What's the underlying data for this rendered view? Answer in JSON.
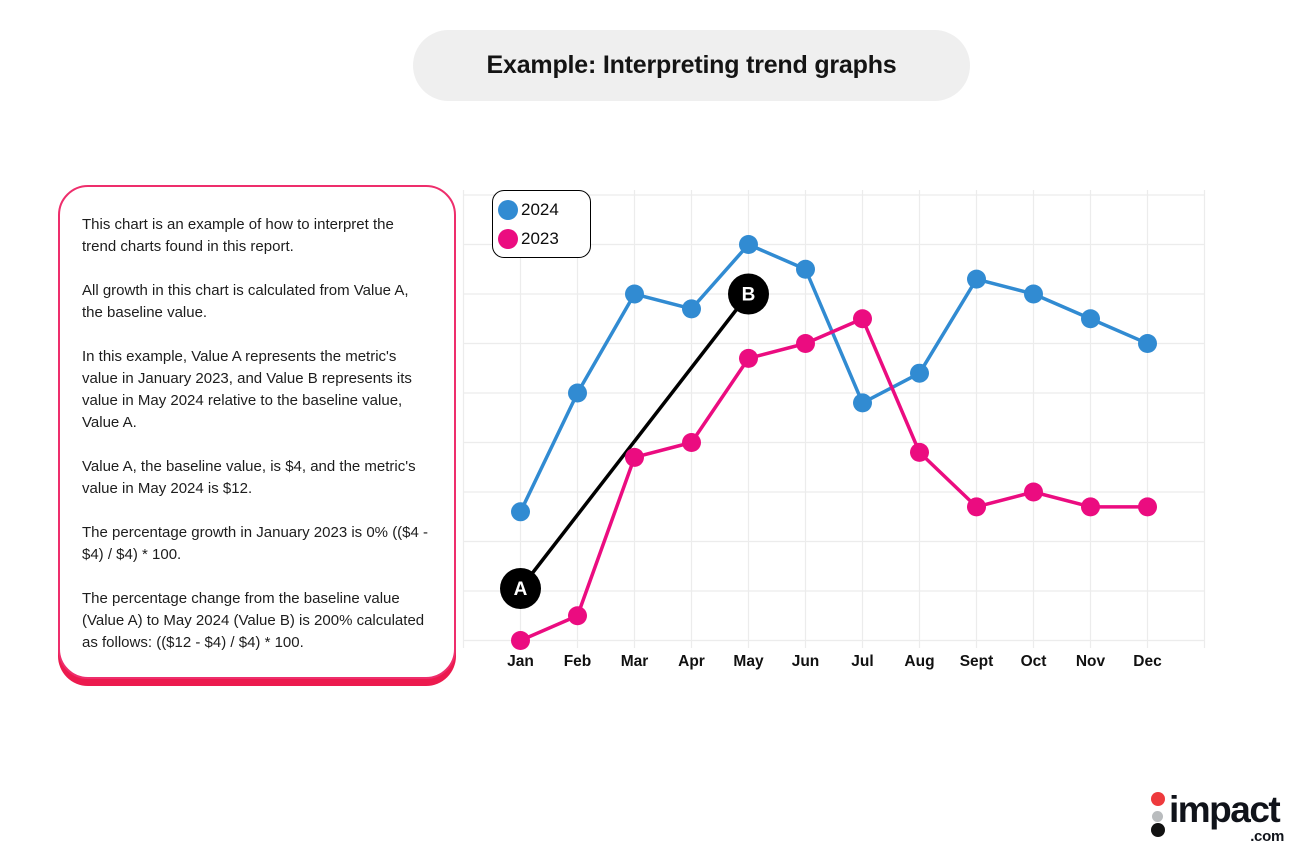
{
  "title": "Example: Interpreting trend graphs",
  "panel": {
    "paragraphs": [
      "This chart is an example of how to interpret the trend charts found in this report.",
      "All growth in this chart is calculated from Value A, the baseline value.",
      "In this example, Value A represents the metric's value in January 2023, and Value B represents its value in May 2024 relative to the baseline value, Value A.",
      "Value A, the baseline value, is $4, and the metric's value in May 2024 is $12.",
      "The percentage growth in January 2023 is 0% (($4 - $4) / $4) * 100.",
      "The percentage change from the baseline value (Value A) to May 2024 (Value B) is 200% calculated as follows: (($12 - $4) / $4) * 100."
    ]
  },
  "chart_data": {
    "type": "line",
    "categories": [
      "Jan",
      "Feb",
      "Mar",
      "Apr",
      "May",
      "Jun",
      "Jul",
      "Aug",
      "Sept",
      "Oct",
      "Nov",
      "Dec"
    ],
    "series": [
      {
        "name": "2024",
        "color": "#318bd2",
        "values": [
          6.6,
          9.0,
          11.0,
          10.7,
          12.0,
          11.5,
          8.8,
          9.4,
          11.3,
          11.0,
          10.5,
          10.0
        ]
      },
      {
        "name": "2023",
        "color": "#eb0c80",
        "values": [
          4.0,
          4.5,
          7.7,
          8.0,
          9.7,
          10.0,
          10.5,
          7.8,
          6.7,
          7.0,
          6.7,
          6.7
        ]
      }
    ],
    "unit": "$",
    "title": "",
    "xlabel": "",
    "ylabel": "",
    "ylim": [
      3.8,
      13.1
    ],
    "y_gridline_step": 1,
    "y_axis_labels_shown": false,
    "grid": true,
    "legend_position": "top-left",
    "annotations": [
      {
        "label": "A",
        "category": "Jan",
        "value_marked": "$4"
      },
      {
        "label": "B",
        "category": "May",
        "value_marked": "$12"
      }
    ],
    "connector": {
      "from": "A",
      "to": "B",
      "color": "#000000"
    }
  },
  "logo": {
    "text": "impact",
    "suffix": ".com"
  },
  "colors": {
    "series_2024": "#318bd2",
    "series_2023": "#eb0c80",
    "panel_border": "#ee2e6c",
    "panel_shadow": "#ec1a4e",
    "title_pill_bg": "#efefef",
    "grid": "#ececec",
    "annotation_circle": "#000000",
    "logo_red": "#ee3a3d",
    "logo_gray": "#b9bcbe",
    "logo_black": "#121212"
  }
}
